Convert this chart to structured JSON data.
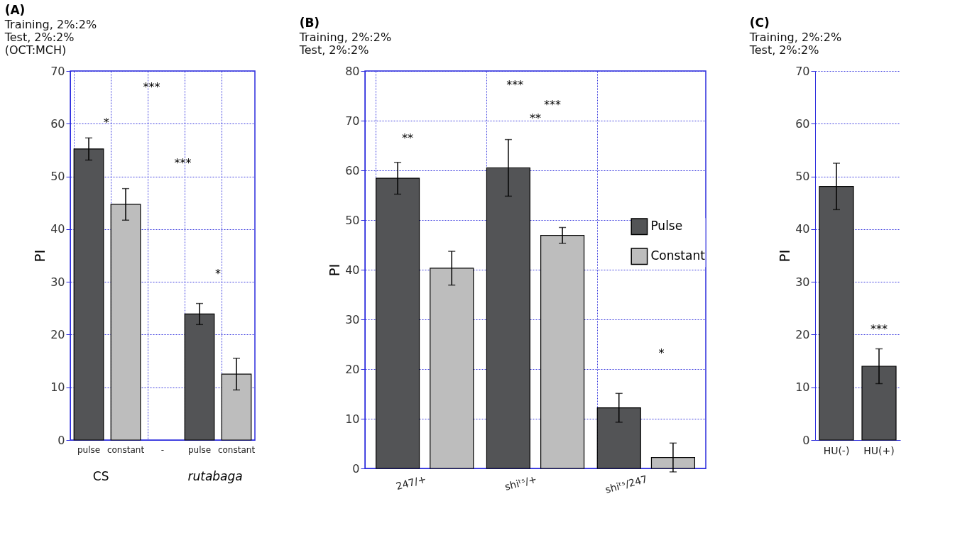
{
  "chart_data": [
    {
      "type": "bar",
      "title": "(A)",
      "subtitle": "Training, 2%:2%\nTest, 2%:2%\n(OCT:MCH)",
      "ylabel": "PI",
      "categories": [
        "pulse",
        "constant",
        "-",
        "pulse",
        "constant"
      ],
      "values": [
        55.2,
        44.7,
        null,
        23.9,
        12.5
      ],
      "errors": [
        2.1,
        3.0,
        null,
        2.0,
        3.0
      ],
      "colors": [
        "#535456",
        "#bdbdbd",
        "#535456",
        "#535456",
        "#bdbdbd"
      ],
      "ylim": [
        0,
        70
      ],
      "yticks": [
        0,
        10,
        20,
        30,
        40,
        50,
        60,
        70
      ],
      "grid": true,
      "annotations": [
        "***",
        "*",
        "***",
        "*",
        "CS",
        "rutabaga"
      ]
    },
    {
      "type": "bar",
      "title": "(B)",
      "subtitle": "Training, 2%:2%\nTest, 2%:2%",
      "ylabel": "PI",
      "categories": [
        "247/+",
        "shiᵗˢ/+",
        "shiᵗˢ/247"
      ],
      "series": [
        {
          "name": "Pulse",
          "color": "#535456",
          "values": [
            58.4,
            60.5,
            12.2
          ],
          "errors": [
            3.2,
            5.7,
            2.9
          ]
        },
        {
          "name": "Constant",
          "color": "#bdbdbd",
          "values": [
            40.3,
            46.9,
            2.2
          ],
          "errors": [
            3.4,
            1.6,
            2.9
          ]
        }
      ],
      "ylim": [
        0,
        80
      ],
      "yticks": [
        0,
        10,
        20,
        30,
        40,
        50,
        60,
        70,
        80
      ],
      "grid": true,
      "legend": "right",
      "annotations": [
        "***",
        "***",
        "**",
        "**",
        "*"
      ]
    },
    {
      "type": "bar",
      "title": "(C)",
      "subtitle": "Training, 2%:2%\nTest, 2%:2%",
      "ylabel": "PI",
      "categories": [
        "HU(-)",
        "HU(+)"
      ],
      "values": [
        48.1,
        14.0
      ],
      "errors": [
        4.4,
        3.3
      ],
      "color": "#535456",
      "ylim": [
        0,
        70
      ],
      "yticks": [
        0,
        10,
        20,
        30,
        40,
        50,
        60,
        70
      ],
      "grid": "y",
      "annotations": [
        "***"
      ]
    }
  ]
}
